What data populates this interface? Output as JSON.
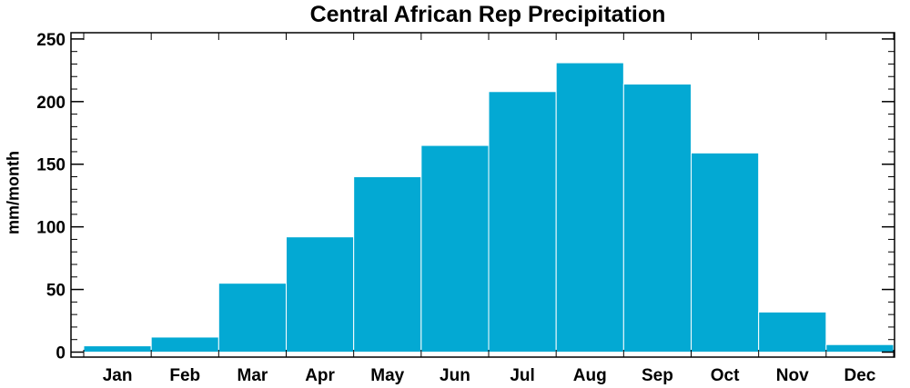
{
  "chart_data": {
    "type": "bar",
    "title": "Central African Rep Precipitation",
    "xlabel": "",
    "ylabel": "mm/month",
    "categories": [
      "Jan",
      "Feb",
      "Mar",
      "Apr",
      "May",
      "Jun",
      "Jul",
      "Aug",
      "Sep",
      "Oct",
      "Nov",
      "Dec"
    ],
    "values": [
      5,
      12,
      55,
      92,
      140,
      165,
      208,
      231,
      214,
      159,
      32,
      6
    ],
    "ylim": [
      -4,
      255
    ],
    "yticks": [
      "0",
      "50",
      "100",
      "150",
      "200",
      "250"
    ],
    "bar_color": "#03a9d3",
    "grid": false
  }
}
